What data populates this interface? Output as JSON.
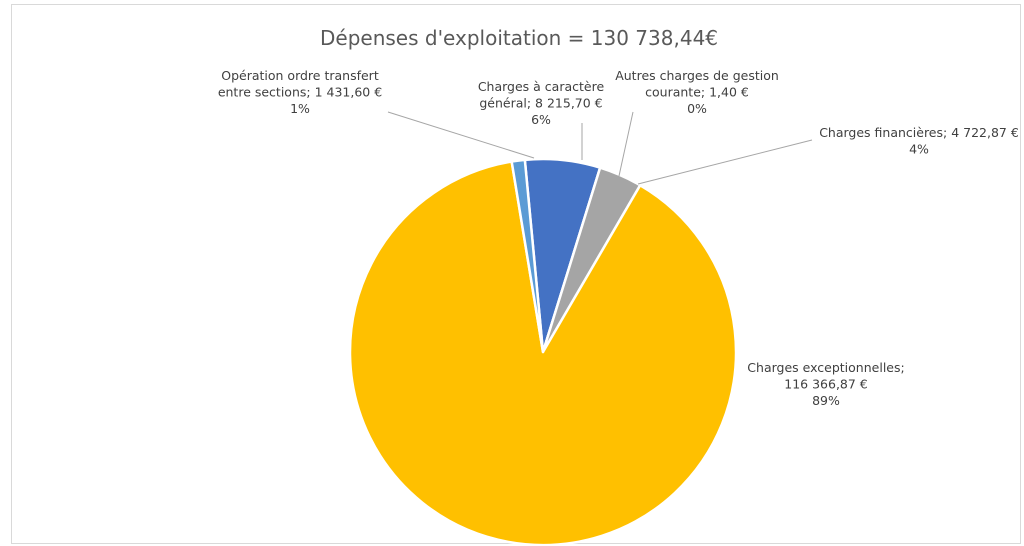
{
  "chart_data": {
    "type": "pie",
    "title": "Dépenses d'exploitation = 130 738,44€",
    "start_angle_deg": -5.4,
    "direction": "clockwise",
    "legend": "none",
    "slices": [
      {
        "name": "Charges à caractère général",
        "value": 8215.7,
        "value_label": "8 215,70 €",
        "percent_label": "6%",
        "label_lines": [
          "Charges à caractère",
          "général; 8 215,70 €",
          "6%"
        ],
        "color": "#4472C4"
      },
      {
        "name": "Autres charges de gestion courante",
        "value": 1.4,
        "value_label": "1,40 €",
        "percent_label": "0%",
        "label_lines": [
          "Autres charges de gestion",
          "courante; 1,40 €",
          "0%"
        ],
        "color": "#ED7D31"
      },
      {
        "name": "Charges financières",
        "value": 4722.87,
        "value_label": "4 722,87 €",
        "percent_label": "4%",
        "label_lines": [
          "Charges financières; 4 722,87 €",
          "4%"
        ],
        "color": "#A5A5A5"
      },
      {
        "name": "Charges exceptionnelles",
        "value": 116366.87,
        "value_label": "116 366,87 €",
        "percent_label": "89%",
        "label_lines": [
          "Charges exceptionnelles;",
          "116 366,87 €",
          "89%"
        ],
        "color": "#FFC000"
      },
      {
        "name": "Opération ordre transfert entre sections",
        "value": 1431.6,
        "value_label": "1 431,60 €",
        "percent_label": "1%",
        "label_lines": [
          "Opération ordre transfert",
          "entre sections; 1 431,60 €",
          "1%"
        ],
        "color": "#5B9BD5"
      }
    ]
  }
}
